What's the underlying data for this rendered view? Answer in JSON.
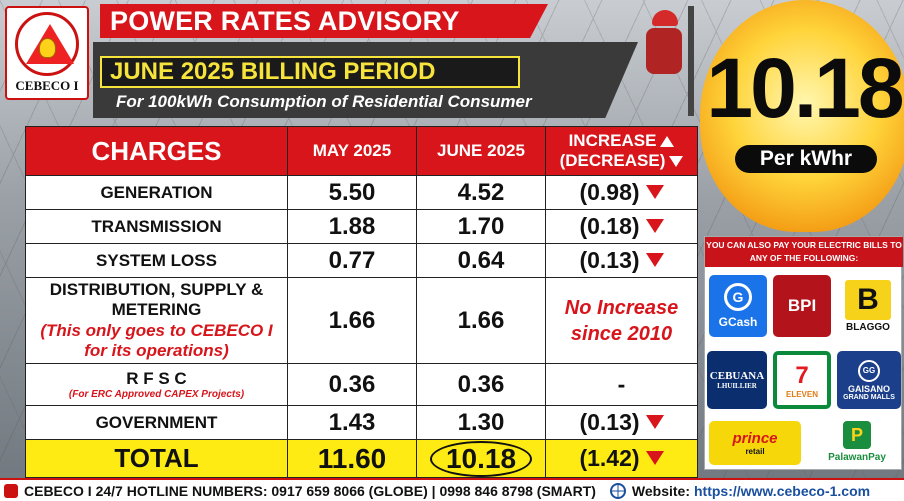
{
  "header": {
    "logo_text": "CEBECO I",
    "title": "POWER RATES ADVISORY",
    "period": "JUNE 2025 BILLING PERIOD",
    "consumption": "For 100kWh Consumption of Residential Consumer"
  },
  "price": {
    "value": "10.18",
    "unit": "Per kWhr"
  },
  "table": {
    "headers": {
      "charges": "CHARGES",
      "prev": "MAY 2025",
      "curr": "JUNE 2025",
      "increase": "INCREASE",
      "decrease": "(DECREASE)"
    },
    "rows": [
      {
        "label": "GENERATION",
        "prev": "5.50",
        "curr": "4.52",
        "change": "(0.98)"
      },
      {
        "label": "TRANSMISSION",
        "prev": "1.88",
        "curr": "1.70",
        "change": "(0.18)"
      },
      {
        "label": "SYSTEM LOSS",
        "prev": "0.77",
        "curr": "0.64",
        "change": "(0.13)"
      },
      {
        "label": "DISTRIBUTION, SUPPLY & METERING",
        "sublabel": "(This only goes to CEBECO I for its operations)",
        "prev": "1.66",
        "curr": "1.66",
        "change": "No Increase since 2010"
      },
      {
        "label": "R F S C",
        "sublabel": "(For ERC Approved CAPEX Projects)",
        "prev": "0.36",
        "curr": "0.36",
        "change": "-"
      },
      {
        "label": "GOVERNMENT",
        "prev": "1.43",
        "curr": "1.30",
        "change": "(0.13)"
      }
    ],
    "total": {
      "label": "TOTAL",
      "prev": "11.60",
      "curr": "10.18",
      "change": "(1.42)"
    }
  },
  "payments": {
    "heading": "YOU CAN ALSO PAY YOUR ELECTRIC BILLS TO ANY OF THE FOLLOWING:",
    "gcash": "GCash",
    "bpi": "BPI",
    "blaggo": "BLAGGO",
    "cebuana": "CEBUANA",
    "cebuana_sub": "LHUILLIER",
    "seven": "7",
    "seven_sub": "ELEVEN",
    "gaisano": "GAISANO",
    "gaisano_sub": "GRAND MALLS",
    "prince": "prince",
    "prince_sub": "retail",
    "palawan": "PalawanPay"
  },
  "footer": {
    "hotline": "CEBECO I 24/7 HOTLINE NUMBERS: 0917 659 8066 (GLOBE) | 0998 846 8798 (SMART)",
    "website_label": "Website:",
    "website": "https://www.cebeco-1.com"
  },
  "colors": {
    "brand_red": "#d7151b",
    "accent_yellow": "#ffeb14"
  }
}
